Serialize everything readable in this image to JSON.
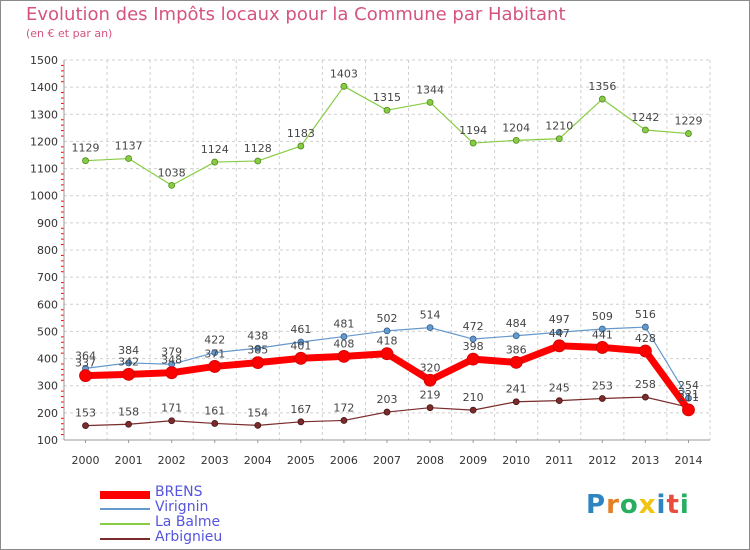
{
  "colors": {
    "title": "#d5547f",
    "axis_text": "#333333",
    "grid": "#cfcfcf",
    "tick_red": "#ff0000",
    "brens": "#ff0000",
    "virignin": "#6699cc",
    "la_balme": "#88cc44",
    "arbignieu": "#7a2b2b",
    "legend_text": "#5555dd"
  },
  "logo": {
    "text": "Proxiti",
    "letter_colors": [
      "#2e86c1",
      "#e67e22",
      "#27ae60",
      "#f1c40f",
      "#2e86c1",
      "#e74c3c",
      "#27ae60"
    ]
  },
  "chart_data": {
    "type": "line",
    "title": "Evolution des Impôts locaux pour la Commune par Habitant",
    "subtitle": "(en € et par an)",
    "xlabel": "",
    "ylabel": "",
    "ylim": [
      100,
      1500
    ],
    "y_ticks": [
      100,
      200,
      300,
      400,
      500,
      600,
      700,
      800,
      900,
      1000,
      1100,
      1200,
      1300,
      1400,
      1500
    ],
    "grid": true,
    "categories": [
      "2000",
      "2001",
      "2002",
      "2003",
      "2004",
      "2005",
      "2006",
      "2007",
      "2008",
      "2009",
      "2010",
      "2011",
      "2012",
      "2013",
      "2014"
    ],
    "series": [
      {
        "name": "La Balme",
        "key": "la_balme",
        "values": [
          1129,
          1137,
          1038,
          1124,
          1128,
          1183,
          1403,
          1315,
          1344,
          1194,
          1204,
          1210,
          1356,
          1242,
          1229
        ],
        "labels": [
          "1129",
          "1137",
          "1038",
          "1124",
          "1128",
          "1183",
          "1403",
          "1315",
          "1344",
          "1194",
          "1204",
          "1210",
          "1356",
          "1242",
          "1229"
        ]
      },
      {
        "name": "Arbignieu",
        "key": "arbignieu",
        "values": [
          153,
          158,
          171,
          161,
          154,
          167,
          172,
          203,
          219,
          210,
          241,
          245,
          253,
          258,
          221
        ],
        "labels": [
          "153",
          "158",
          "171",
          "161",
          "154",
          "167",
          "172",
          "203",
          "219",
          "210",
          "241",
          "245",
          "253",
          "258",
          "221"
        ]
      },
      {
        "name": "Virignin",
        "key": "virignin",
        "values": [
          364,
          384,
          379,
          422,
          438,
          461,
          481,
          502,
          514,
          472,
          484,
          497,
          509,
          516,
          254
        ],
        "labels": [
          "364",
          "384",
          "379",
          "422",
          "438",
          "461",
          "481",
          "502",
          "514",
          "472",
          "484",
          "497",
          "509",
          "516",
          "254"
        ]
      },
      {
        "name": "BRENS",
        "key": "brens",
        "values": [
          337,
          342,
          348,
          371,
          385,
          401,
          408,
          418,
          320,
          398,
          386,
          447,
          441,
          428,
          211
        ],
        "labels": [
          "337",
          "342",
          "348",
          "371",
          "385",
          "401",
          "408",
          "418",
          "320",
          "398",
          "386",
          "447",
          "441",
          "428",
          "211"
        ]
      }
    ],
    "legend": [
      "BRENS",
      "Virignin",
      "La Balme",
      "Arbignieu"
    ]
  }
}
